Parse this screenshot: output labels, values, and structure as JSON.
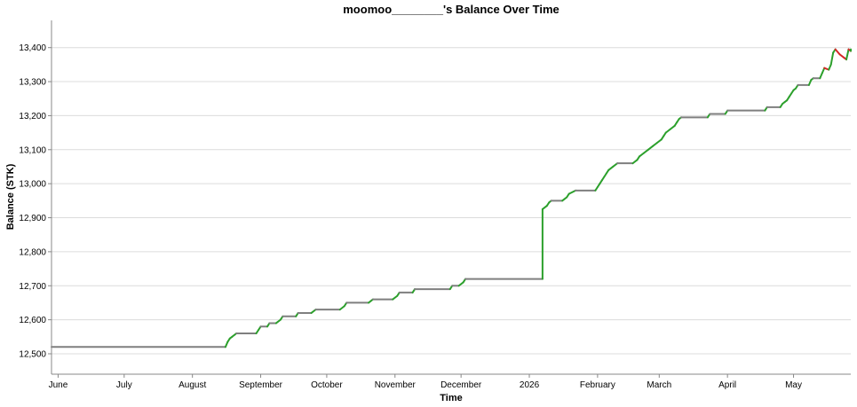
{
  "chart_data": {
    "type": "line",
    "title": "moomoo________'s Balance Over Time",
    "xlabel": "Time",
    "ylabel": "Balance (STK)",
    "ylim": [
      12440,
      13480
    ],
    "xlim": [
      "2025-05-29",
      "2026-05-27"
    ],
    "grid": "horizontal",
    "legend": "none",
    "y_ticks": [
      12500,
      12600,
      12700,
      12800,
      12900,
      13000,
      13100,
      13200,
      13300,
      13400
    ],
    "y_tick_labels": [
      "12,500",
      "12,600",
      "12,700",
      "12,800",
      "12,900",
      "13,000",
      "13,100",
      "13,200",
      "13,300",
      "13,400"
    ],
    "x_ticks": [
      {
        "date": "2025-06-01",
        "label": "June"
      },
      {
        "date": "2025-07-01",
        "label": "July"
      },
      {
        "date": "2025-08-01",
        "label": "August"
      },
      {
        "date": "2025-09-01",
        "label": "September"
      },
      {
        "date": "2025-10-01",
        "label": "October"
      },
      {
        "date": "2025-11-01",
        "label": "November"
      },
      {
        "date": "2025-12-01",
        "label": "December"
      },
      {
        "date": "2026-01-01",
        "label": "2026"
      },
      {
        "date": "2026-02-01",
        "label": "February"
      },
      {
        "date": "2026-03-01",
        "label": "March"
      },
      {
        "date": "2026-04-01",
        "label": "April"
      },
      {
        "date": "2026-05-01",
        "label": "May"
      }
    ],
    "colors": {
      "up": "#2ca02c",
      "down": "#d62728",
      "flat": "#7f7f7f"
    },
    "series": [
      {
        "values": [
          [
            "2025-05-29",
            12520
          ],
          [
            "2025-08-16",
            12520
          ],
          [
            "2025-08-17",
            12535
          ],
          [
            "2025-08-18",
            12545
          ],
          [
            "2025-08-19",
            12550
          ],
          [
            "2025-08-20",
            12555
          ],
          [
            "2025-08-21",
            12560
          ],
          [
            "2025-08-30",
            12560
          ],
          [
            "2025-08-31",
            12570
          ],
          [
            "2025-09-01",
            12580
          ],
          [
            "2025-09-04",
            12580
          ],
          [
            "2025-09-05",
            12590
          ],
          [
            "2025-09-08",
            12590
          ],
          [
            "2025-09-10",
            12600
          ],
          [
            "2025-09-11",
            12610
          ],
          [
            "2025-09-17",
            12610
          ],
          [
            "2025-09-18",
            12620
          ],
          [
            "2025-09-24",
            12620
          ],
          [
            "2025-09-26",
            12630
          ],
          [
            "2025-10-07",
            12630
          ],
          [
            "2025-10-09",
            12640
          ],
          [
            "2025-10-10",
            12650
          ],
          [
            "2025-10-20",
            12650
          ],
          [
            "2025-10-22",
            12660
          ],
          [
            "2025-10-31",
            12660
          ],
          [
            "2025-11-02",
            12670
          ],
          [
            "2025-11-03",
            12680
          ],
          [
            "2025-11-09",
            12680
          ],
          [
            "2025-11-10",
            12690
          ],
          [
            "2025-11-26",
            12690
          ],
          [
            "2025-11-27",
            12700
          ],
          [
            "2025-11-30",
            12700
          ],
          [
            "2025-12-02",
            12710
          ],
          [
            "2025-12-03",
            12720
          ],
          [
            "2026-01-07",
            12720
          ],
          [
            "2026-01-07",
            12925
          ],
          [
            "2026-01-09",
            12935
          ],
          [
            "2026-01-10",
            12945
          ],
          [
            "2026-01-11",
            12950
          ],
          [
            "2026-01-16",
            12950
          ],
          [
            "2026-01-18",
            12960
          ],
          [
            "2026-01-19",
            12970
          ],
          [
            "2026-01-22",
            12980
          ],
          [
            "2026-01-31",
            12980
          ],
          [
            "2026-02-01",
            12990
          ],
          [
            "2026-02-02",
            13000
          ],
          [
            "2026-02-03",
            13010
          ],
          [
            "2026-02-04",
            13020
          ],
          [
            "2026-02-05",
            13030
          ],
          [
            "2026-02-06",
            13040
          ],
          [
            "2026-02-08",
            13050
          ],
          [
            "2026-02-10",
            13060
          ],
          [
            "2026-02-17",
            13060
          ],
          [
            "2026-02-19",
            13070
          ],
          [
            "2026-02-20",
            13080
          ],
          [
            "2026-02-22",
            13090
          ],
          [
            "2026-02-24",
            13100
          ],
          [
            "2026-02-26",
            13110
          ],
          [
            "2026-02-28",
            13120
          ],
          [
            "2026-03-02",
            13130
          ],
          [
            "2026-03-03",
            13140
          ],
          [
            "2026-03-04",
            13150
          ],
          [
            "2026-03-06",
            13160
          ],
          [
            "2026-03-08",
            13170
          ],
          [
            "2026-03-09",
            13180
          ],
          [
            "2026-03-10",
            13190
          ],
          [
            "2026-03-11",
            13195
          ],
          [
            "2026-03-23",
            13195
          ],
          [
            "2026-03-24",
            13205
          ],
          [
            "2026-03-31",
            13205
          ],
          [
            "2026-04-01",
            13215
          ],
          [
            "2026-04-18",
            13215
          ],
          [
            "2026-04-19",
            13225
          ],
          [
            "2026-04-25",
            13225
          ],
          [
            "2026-04-26",
            13235
          ],
          [
            "2026-04-27",
            13240
          ],
          [
            "2026-04-28",
            13245
          ],
          [
            "2026-04-29",
            13255
          ],
          [
            "2026-04-30",
            13265
          ],
          [
            "2026-05-01",
            13275
          ],
          [
            "2026-05-02",
            13280
          ],
          [
            "2026-05-03",
            13290
          ],
          [
            "2026-05-08",
            13290
          ],
          [
            "2026-05-09",
            13305
          ],
          [
            "2026-05-10",
            13310
          ],
          [
            "2026-05-13",
            13310
          ],
          [
            "2026-05-14",
            13325
          ],
          [
            "2026-05-15",
            13340
          ],
          [
            "2026-05-17",
            13335
          ],
          [
            "2026-05-18",
            13350
          ],
          [
            "2026-05-19",
            13385
          ],
          [
            "2026-05-20",
            13395
          ],
          [
            "2026-05-22",
            13380
          ],
          [
            "2026-05-24",
            13370
          ],
          [
            "2026-05-25",
            13365
          ],
          [
            "2026-05-26",
            13395
          ],
          [
            "2026-05-27",
            13390
          ],
          [
            "2026-05-27",
            13395
          ]
        ]
      }
    ]
  }
}
